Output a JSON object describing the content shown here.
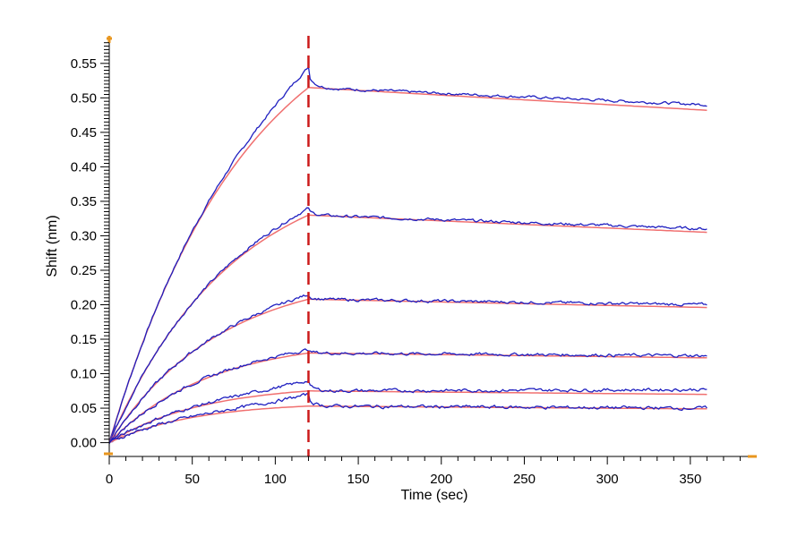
{
  "chart_data": {
    "type": "line",
    "title": "",
    "xlabel": "Time (sec)",
    "ylabel": "Shift (nm)",
    "xlim": [
      0,
      390
    ],
    "ylim": [
      -0.02,
      0.59
    ],
    "x_ticks": [
      0,
      50,
      100,
      150,
      200,
      250,
      300,
      350
    ],
    "x_tick_labels": [
      "0",
      "50",
      "100",
      "150",
      "200",
      "250",
      "300",
      "350"
    ],
    "y_ticks": [
      0.0,
      0.05,
      0.1,
      0.15,
      0.2,
      0.25,
      0.3,
      0.35,
      0.4,
      0.45,
      0.5,
      0.55
    ],
    "y_tick_labels": [
      "0.00",
      "0.05",
      "0.10",
      "0.15",
      "0.20",
      "0.25",
      "0.30",
      "0.35",
      "0.40",
      "0.45",
      "0.50",
      "0.55"
    ],
    "grid": false,
    "legend": "none",
    "association_end_time": 120,
    "end_time": 360,
    "colors": {
      "data": "#1f1fc0",
      "fit": "#f07070",
      "marker": "#cc1a1a",
      "axis_accent": "#e8961e"
    },
    "series": [
      {
        "peak_y": 0.515,
        "end_y": 0.482,
        "observed_peak_y": 0.545,
        "observed_end_y": 0.49
      },
      {
        "peak_y": 0.33,
        "end_y": 0.305,
        "observed_peak_y": 0.34,
        "observed_end_y": 0.31
      },
      {
        "peak_y": 0.208,
        "end_y": 0.196,
        "observed_peak_y": 0.215,
        "observed_end_y": 0.2
      },
      {
        "peak_y": 0.13,
        "end_y": 0.123,
        "observed_peak_y": 0.135,
        "observed_end_y": 0.126
      },
      {
        "peak_y": 0.075,
        "end_y": 0.07,
        "observed_peak_y": 0.09,
        "observed_end_y": 0.077
      },
      {
        "peak_y": 0.053,
        "end_y": 0.049,
        "observed_peak_y": 0.07,
        "observed_end_y": 0.05
      }
    ]
  }
}
